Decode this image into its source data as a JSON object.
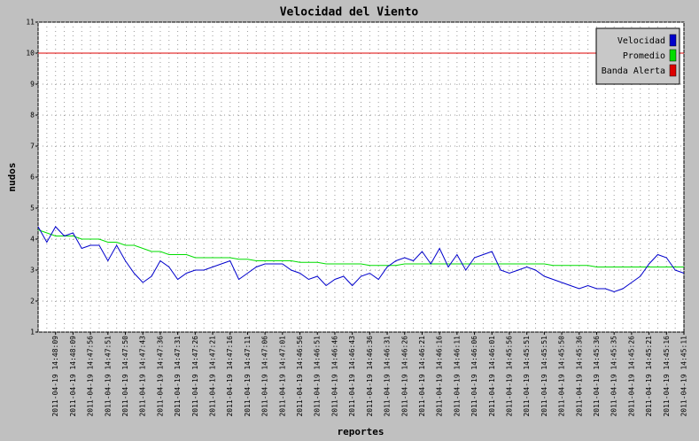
{
  "chart_data": {
    "type": "line",
    "title": "Velocidad del Viento",
    "x_label": "reportes",
    "y_label": "nudos",
    "categories": [
      null,
      null,
      "2011-04-19 14:48:09",
      null,
      "2011-04-19 14:48:09",
      null,
      "2011-04-19 14:47:56",
      null,
      "2011-04-19 14:47:51",
      null,
      "2011-04-19 14:47:50",
      null,
      "2011-04-19 14:47:43",
      null,
      "2011-04-19 14:47:36",
      null,
      "2011-04-19 14:47:31",
      null,
      "2011-04-19 14:47:26",
      null,
      "2011-04-19 14:47:21",
      null,
      "2011-04-19 14:47:16",
      null,
      "2011-04-19 14:47:11",
      null,
      "2011-04-19 14:47:06",
      null,
      "2011-04-19 14:47:01",
      null,
      "2011-04-19 14:46:56",
      null,
      "2011-04-19 14:46:51",
      null,
      "2011-04-19 14:46:46",
      null,
      "2011-04-19 14:46:43",
      null,
      "2011-04-19 14:46:36",
      null,
      "2011-04-19 14:46:31",
      null,
      "2011-04-19 14:46:26",
      null,
      "2011-04-19 14:46:21",
      null,
      "2011-04-19 14:46:16",
      null,
      "2011-04-19 14:46:11",
      null,
      "2011-04-19 14:46:06",
      null,
      "2011-04-19 14:46:01",
      null,
      "2011-04-19 14:45:56",
      null,
      "2011-04-19 14:45:51",
      null,
      "2011-04-19 14:45:51",
      null,
      "2011-04-19 14:45:50",
      null,
      "2011-04-19 14:45:36",
      null,
      "2011-04-19 14:45:36",
      null,
      "2011-04-19 14:45:35",
      null,
      "2011-04-19 14:45:26",
      null,
      "2011-04-19 14:45:21",
      null,
      "2011-04-19 14:45:16",
      null,
      "2011-04-19 14:45:11"
    ],
    "series": [
      {
        "name": "Velocidad",
        "color": "#0000cc",
        "values": [
          4.4,
          3.9,
          4.4,
          4.1,
          4.2,
          3.7,
          3.8,
          3.8,
          3.3,
          3.8,
          3.3,
          2.9,
          2.6,
          2.8,
          3.3,
          3.1,
          2.7,
          2.9,
          3.0,
          3.0,
          3.1,
          3.2,
          3.3,
          2.7,
          2.9,
          3.1,
          3.2,
          3.2,
          3.2,
          3.0,
          2.9,
          2.7,
          2.8,
          2.5,
          2.7,
          2.8,
          2.5,
          2.8,
          2.9,
          2.7,
          3.1,
          3.3,
          3.4,
          3.3,
          3.6,
          3.2,
          3.7,
          3.1,
          3.5,
          3.0,
          3.4,
          3.5,
          3.6,
          3.0,
          2.9,
          3.0,
          3.1,
          3.0,
          2.8,
          2.7,
          2.6,
          2.5,
          2.4,
          2.5,
          2.4,
          2.4,
          2.3,
          2.4,
          2.6,
          2.8,
          3.2,
          3.5,
          3.4,
          3.0,
          2.9
        ]
      },
      {
        "name": "Promedio",
        "color": "#00dd00",
        "values": [
          4.3,
          4.2,
          4.1,
          4.1,
          4.1,
          4.0,
          4.0,
          4.0,
          3.9,
          3.9,
          3.8,
          3.8,
          3.7,
          3.6,
          3.6,
          3.5,
          3.5,
          3.5,
          3.4,
          3.4,
          3.4,
          3.4,
          3.4,
          3.35,
          3.35,
          3.3,
          3.3,
          3.3,
          3.3,
          3.3,
          3.25,
          3.25,
          3.25,
          3.2,
          3.2,
          3.2,
          3.2,
          3.2,
          3.15,
          3.15,
          3.15,
          3.15,
          3.2,
          3.2,
          3.2,
          3.2,
          3.2,
          3.2,
          3.2,
          3.2,
          3.2,
          3.2,
          3.2,
          3.2,
          3.2,
          3.2,
          3.2,
          3.2,
          3.2,
          3.15,
          3.15,
          3.15,
          3.15,
          3.15,
          3.1,
          3.1,
          3.1,
          3.1,
          3.1,
          3.1,
          3.1,
          3.1,
          3.1,
          3.1,
          3.1
        ]
      },
      {
        "name": "Banda Alerta",
        "color": "#dd0000",
        "values": [
          10,
          10,
          10,
          10,
          10,
          10,
          10,
          10,
          10,
          10,
          10,
          10,
          10,
          10,
          10,
          10,
          10,
          10,
          10,
          10,
          10,
          10,
          10,
          10,
          10,
          10,
          10,
          10,
          10,
          10,
          10,
          10,
          10,
          10,
          10,
          10,
          10,
          10,
          10,
          10,
          10,
          10,
          10,
          10,
          10,
          10,
          10,
          10,
          10,
          10,
          10,
          10,
          10,
          10,
          10,
          10,
          10,
          10,
          10,
          10,
          10,
          10,
          10,
          10,
          10,
          10,
          10,
          10,
          10,
          10,
          10,
          10,
          10,
          10,
          10
        ]
      }
    ],
    "ylim": [
      1,
      11
    ],
    "yticks": [
      1,
      2,
      3,
      4,
      5,
      6,
      7,
      8,
      9,
      10,
      11
    ],
    "grid": true,
    "legend": "top-right"
  }
}
